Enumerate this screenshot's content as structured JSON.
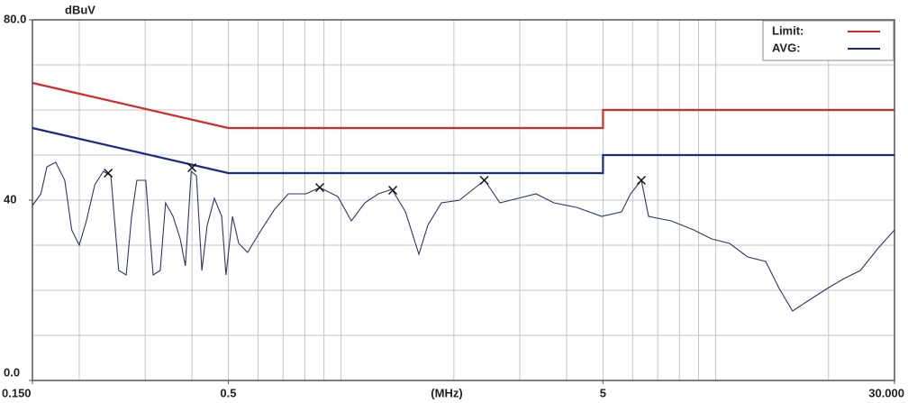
{
  "chart_data": {
    "type": "line",
    "y_unit": "dBuV",
    "x_label": "(MHz)",
    "log_x": true,
    "xlim": [
      0.15,
      30
    ],
    "ylim": [
      0,
      80
    ],
    "xticks": [
      {
        "value": 0.15,
        "label": "0.150"
      },
      0.5,
      5,
      {
        "value": 30,
        "label": "30.000"
      }
    ],
    "yticks": [
      {
        "value": 0,
        "label": "0.0"
      },
      40,
      {
        "value": 80,
        "label": "80.0"
      }
    ],
    "xgrid": [
      0.2,
      0.3,
      0.4,
      0.5,
      0.6,
      0.7,
      0.8,
      0.9,
      1,
      2,
      3,
      4,
      5,
      6,
      7,
      8,
      9,
      10,
      20
    ],
    "ygrid": [
      10,
      20,
      30,
      40,
      50,
      60,
      70
    ],
    "legend": "top-right",
    "series": [
      {
        "name": "Limit:",
        "color": "#d42a2a",
        "x": [
          0.15,
          0.5,
          5,
          5,
          30
        ],
        "values": [
          66,
          56,
          56,
          60,
          60
        ]
      },
      {
        "name": "AVG:",
        "color": "#1c2a86",
        "x": [
          0.15,
          0.5,
          5,
          5,
          30
        ],
        "values": [
          56,
          46,
          46,
          50,
          50
        ]
      },
      {
        "color": "#2b3768",
        "x": [
          0.15,
          0.158,
          0.164,
          0.173,
          0.183,
          0.191,
          0.2,
          0.209,
          0.22,
          0.232,
          0.243,
          0.255,
          0.267,
          0.276,
          0.285,
          0.301,
          0.315,
          0.329,
          0.34,
          0.356,
          0.372,
          0.384,
          0.398,
          0.411,
          0.425,
          0.439,
          0.459,
          0.48,
          0.493,
          0.513,
          0.533,
          0.563,
          0.612,
          0.665,
          0.723,
          0.807,
          0.877,
          0.98,
          1.065,
          1.157,
          1.257,
          1.367,
          1.485,
          1.613,
          1.704,
          1.852,
          2.07,
          2.249,
          2.417,
          2.655,
          2.966,
          3.313,
          3.7,
          4.251,
          4.963,
          5.605,
          5.925,
          6.332,
          6.619,
          7.6,
          8.73,
          9.753,
          10.89,
          12.17,
          13.59,
          14.77,
          16.04,
          17.44,
          19.49,
          21.77,
          24.32,
          27.17,
          30
        ],
        "values": [
          38.8,
          41.4,
          47.4,
          48.4,
          44.4,
          33.4,
          30,
          35.4,
          43.4,
          46.4,
          45.4,
          24.4,
          23.4,
          36.4,
          44.4,
          44.4,
          23.4,
          24.4,
          39.4,
          36.4,
          31.4,
          25.4,
          46.4,
          45.4,
          24.4,
          34.4,
          40.4,
          36.4,
          23.4,
          36.4,
          30.4,
          28.4,
          33.4,
          38,
          41.4,
          41.4,
          42.8,
          40.8,
          35.4,
          39.4,
          41.4,
          42.4,
          37.4,
          28,
          34.4,
          39.4,
          40,
          42.4,
          44.4,
          39.4,
          40.4,
          41.4,
          39.4,
          38.4,
          36.4,
          37.4,
          41.4,
          44.4,
          36.4,
          35.4,
          33.4,
          31.4,
          30.4,
          27.4,
          26.4,
          20.4,
          15.4,
          17.4,
          20,
          22.4,
          24.4,
          29.4,
          33.4
        ]
      }
    ],
    "peaks": {
      "x": [
        0.239,
        0.4,
        0.877,
        1.374,
        2.41,
        6.33
      ],
      "values": [
        46,
        47.2,
        42.8,
        42.2,
        44.4,
        44.4
      ]
    }
  }
}
